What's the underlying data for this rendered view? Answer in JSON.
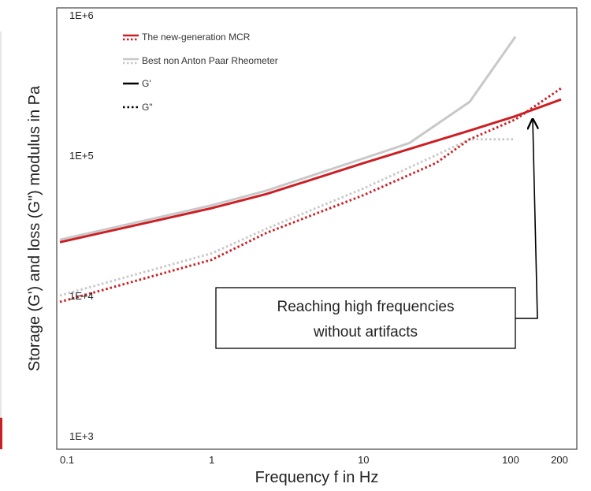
{
  "chart_data": {
    "type": "line",
    "x_scale": "log",
    "y_scale": "log",
    "xlabel": "Frequency f in Hz",
    "ylabel": "Storage (G') and loss (G\") modulus in Pa",
    "xlim": [
      0.1,
      200
    ],
    "ylim": [
      1000,
      1000000
    ],
    "x_ticks": [
      {
        "value": 0.1,
        "label": "0.1"
      },
      {
        "value": 1,
        "label": "1"
      },
      {
        "value": 10,
        "label": "10"
      },
      {
        "value": 100,
        "label": "100"
      },
      {
        "value": 200,
        "label": "200"
      }
    ],
    "y_ticks": [
      {
        "value": 1000,
        "label": "1E+3"
      },
      {
        "value": 10000,
        "label": "1E+4"
      },
      {
        "value": 100000,
        "label": "1E+5"
      },
      {
        "value": 1000000,
        "label": "1E+6"
      }
    ],
    "grid": false,
    "legend": {
      "placement": "top-left",
      "entries": [
        {
          "label": "The new-generation MCR",
          "color": "#cc1f24",
          "style": "solid-dotted"
        },
        {
          "label": "Best non Anton Paar Rheometer",
          "color": "#c8c8c8",
          "style": "solid-dotted"
        },
        {
          "label": "G'",
          "color": "#000000",
          "style": "solid"
        },
        {
          "label": "G\"",
          "color": "#000000",
          "style": "dotted"
        }
      ]
    },
    "series": [
      {
        "id": "best-gprime",
        "color": "#c8c8c8",
        "dash": "solid",
        "x": [
          0.1,
          1,
          2.3,
          10,
          20,
          50,
          100
        ],
        "y": [
          25000,
          44000,
          56000,
          95000,
          122000,
          240000,
          700000
        ]
      },
      {
        "id": "best-gdoubleprime",
        "color": "#c8c8c8",
        "dash": "dotted",
        "x": [
          0.1,
          1,
          2.3,
          10,
          30,
          50,
          100
        ],
        "y": [
          10000,
          20000,
          30000,
          58000,
          100000,
          130000,
          130000
        ]
      },
      {
        "id": "mcr-gprime",
        "color": "#cc1f24",
        "dash": "solid",
        "x": [
          0.1,
          1,
          2.3,
          10,
          50,
          100,
          200
        ],
        "y": [
          24000,
          42000,
          53000,
          88000,
          150000,
          190000,
          250000
        ]
      },
      {
        "id": "mcr-gdoubleprime",
        "color": "#cc1f24",
        "dash": "dotted",
        "x": [
          0.1,
          1,
          2.3,
          10,
          30,
          50,
          100,
          200
        ],
        "y": [
          9000,
          18000,
          28000,
          52000,
          88000,
          130000,
          180000,
          300000
        ]
      }
    ],
    "annotation": {
      "text_line1": "Reaching high frequencies",
      "text_line2": "without artifacts",
      "arrow_target": {
        "x": 130,
        "y": 200000
      }
    }
  },
  "colors": {
    "mcr": "#cc1f24",
    "best": "#c8c8c8",
    "frame": "#444444",
    "axis": "#222222"
  }
}
